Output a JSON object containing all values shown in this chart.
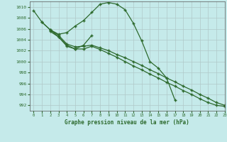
{
  "title": "Graphe pression niveau de la mer (hPa)",
  "bg_color": "#c5eaea",
  "grid_color": "#b0c8c8",
  "line_color": "#2d6a2d",
  "xlim": [
    -0.5,
    23
  ],
  "ylim": [
    991,
    1011
  ],
  "yticks": [
    992,
    994,
    996,
    998,
    1000,
    1002,
    1004,
    1006,
    1008,
    1010
  ],
  "xticks": [
    0,
    1,
    2,
    3,
    4,
    5,
    6,
    7,
    8,
    9,
    10,
    11,
    12,
    13,
    14,
    15,
    16,
    17,
    18,
    19,
    20,
    21,
    22,
    23
  ],
  "line1_x": [
    0,
    1,
    2,
    3,
    4,
    5,
    6,
    7,
    8,
    9,
    10,
    11,
    12,
    13,
    14,
    15,
    16,
    17
  ],
  "line1_y": [
    1009.3,
    1007.2,
    1005.8,
    1005.0,
    1005.3,
    1006.5,
    1007.5,
    1009.0,
    1010.5,
    1010.8,
    1010.5,
    1009.5,
    1007.0,
    1003.8,
    1000.0,
    998.8,
    997.0,
    993.0
  ],
  "line2_x": [
    1,
    2,
    3,
    4,
    5,
    6,
    7
  ],
  "line2_y": [
    1007.2,
    1005.8,
    1004.5,
    1003.0,
    1002.3,
    1003.0,
    1004.8
  ],
  "line3_x": [
    2,
    3,
    4,
    5,
    6,
    7,
    8,
    9,
    10,
    11,
    12,
    13,
    14,
    15,
    16,
    17,
    18,
    19,
    20,
    21,
    22,
    23
  ],
  "line3_y": [
    1005.8,
    1004.8,
    1003.2,
    1002.7,
    1002.8,
    1003.0,
    1002.5,
    1002.0,
    1001.3,
    1000.7,
    1000.0,
    999.3,
    998.5,
    997.8,
    997.0,
    996.3,
    995.5,
    994.8,
    994.0,
    993.3,
    992.5,
    992.0
  ],
  "line4_x": [
    2,
    3,
    4,
    5,
    6,
    7,
    8,
    9,
    10,
    11,
    12,
    13,
    14,
    15,
    16,
    17,
    18,
    19,
    20,
    21,
    22,
    23
  ],
  "line4_y": [
    1005.5,
    1004.5,
    1002.8,
    1002.3,
    1002.3,
    1002.8,
    1002.2,
    1001.5,
    1000.8,
    1000.0,
    999.2,
    998.5,
    997.7,
    997.0,
    996.2,
    995.5,
    994.7,
    994.0,
    993.2,
    992.5,
    992.0,
    991.8
  ]
}
